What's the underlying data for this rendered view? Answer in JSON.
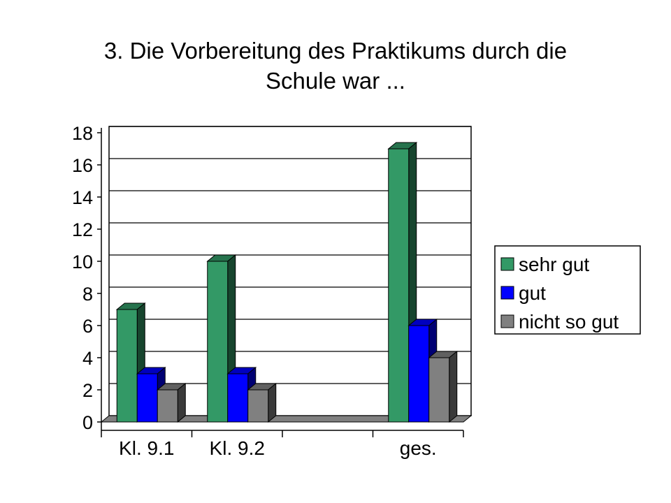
{
  "chart_data": {
    "type": "bar",
    "title": "3. Die Vorbereitung des Praktikums durch die Schule war ...",
    "title_lines": [
      "3. Die Vorbereitung des Praktikums durch die",
      "Schule war ..."
    ],
    "categories": [
      "Kl. 9.1",
      "Kl. 9.2",
      "",
      "ges."
    ],
    "series": [
      {
        "name": "sehr gut",
        "values": [
          7,
          10,
          0,
          17
        ],
        "color": "#339966"
      },
      {
        "name": "gut",
        "values": [
          3,
          3,
          0,
          6
        ],
        "color": "#0000ff"
      },
      {
        "name": "nicht so gut",
        "values": [
          2,
          2,
          0,
          4
        ],
        "color": "#808080"
      }
    ],
    "ylim": [
      0,
      18
    ],
    "yticks": [
      "0",
      "2",
      "4",
      "6",
      "8",
      "10",
      "12",
      "14",
      "16",
      "18"
    ],
    "grid": true,
    "legend": "right",
    "three_d": true
  }
}
